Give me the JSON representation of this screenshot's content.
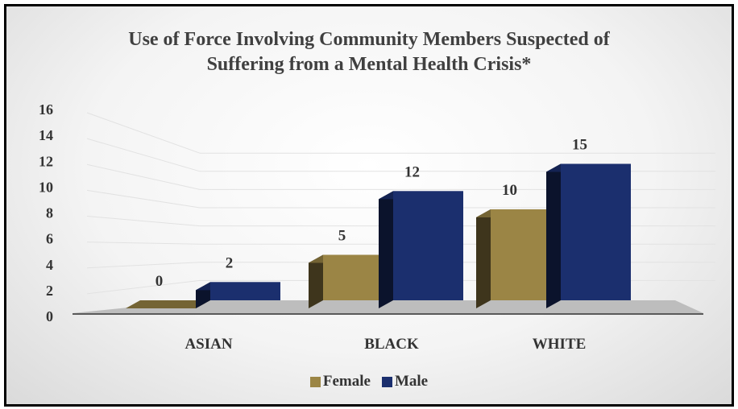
{
  "chart_data": {
    "type": "bar",
    "title_lines": [
      "Use of Force Involving Community Members Suspected of",
      "Suffering from a Mental Health Crisis*"
    ],
    "categories": [
      "ASIAN",
      "BLACK",
      "WHITE"
    ],
    "series": [
      {
        "name": "Female",
        "values": [
          0,
          5,
          10
        ],
        "color": "#9b8545"
      },
      {
        "name": "Male",
        "values": [
          2,
          12,
          15
        ],
        "color": "#1b2f6e"
      }
    ],
    "data_labels": [
      [
        "0",
        "5",
        "10"
      ],
      [
        "2",
        "12",
        "15"
      ]
    ],
    "y_ticks": [
      "0",
      "2",
      "4",
      "6",
      "8",
      "10",
      "12",
      "14",
      "16"
    ],
    "ylim": [
      0,
      16
    ],
    "legend_position": "bottom",
    "style": "3d-column",
    "grid": true
  }
}
